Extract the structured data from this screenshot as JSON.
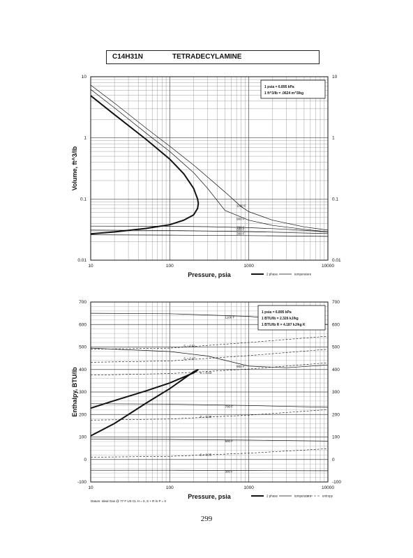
{
  "header": {
    "formula": "C14H31N",
    "name": "TETRADECYLAMINE"
  },
  "page_number": "299",
  "chart_data": [
    {
      "type": "line",
      "xlabel": "Pressure,  psia",
      "ylabel": "Volume, ft^3/lb",
      "xscale": "log",
      "yscale": "log",
      "xlim": [
        10,
        10000
      ],
      "ylim": [
        0.01,
        10
      ],
      "x_ticks": [
        "10",
        "100",
        "1000",
        "10000"
      ],
      "y_ticks": [
        "0.01",
        "0.1",
        "1",
        "10"
      ],
      "y_ticks_right": [
        "0.01",
        "0.1",
        "1",
        "10"
      ],
      "grid": true,
      "conversion_box": [
        "1 psia  =  6.895 kPa",
        "1 ft^3/lb  =  .0624 m^3/kg"
      ],
      "legend": [
        {
          "label": "2 phase",
          "style": "thick"
        },
        {
          "label": "temperature",
          "style": "thin"
        }
      ],
      "series": [
        {
          "style": "2phase",
          "x": [
            10,
            20,
            50,
            100,
            150,
            200,
            225,
            230,
            225,
            200,
            150,
            100,
            50,
            20,
            10
          ],
          "y": [
            4.9,
            2.4,
            0.95,
            0.45,
            0.26,
            0.15,
            0.1,
            0.085,
            0.07,
            0.055,
            0.045,
            0.038,
            0.033,
            0.029,
            0.027
          ]
        },
        {
          "name": "300 F",
          "x": [
            10,
            100,
            1000,
            10000
          ],
          "y": [
            0.026,
            0.0257,
            0.0252,
            0.0245
          ]
        },
        {
          "name": "500 F",
          "x": [
            10,
            100,
            1000,
            10000
          ],
          "y": [
            0.031,
            0.0305,
            0.0293,
            0.0272
          ]
        },
        {
          "name": "700 F",
          "x": [
            10,
            100,
            300,
            1000,
            3000,
            10000
          ],
          "y": [
            0.036,
            0.0358,
            0.0353,
            0.034,
            0.032,
            0.029
          ]
        },
        {
          "name": "900 F",
          "x": [
            10,
            20,
            50,
            100,
            200,
            300,
            500,
            1000,
            2000,
            5000,
            10000
          ],
          "y": [
            6.2,
            3.1,
            1.2,
            0.6,
            0.27,
            0.15,
            0.065,
            0.045,
            0.037,
            0.032,
            0.029
          ]
        },
        {
          "name": "1100 F",
          "x": [
            10,
            20,
            50,
            100,
            200,
            500,
            800,
            1000,
            2000,
            5000,
            10000
          ],
          "y": [
            7.3,
            3.7,
            1.45,
            0.73,
            0.36,
            0.13,
            0.075,
            0.062,
            0.045,
            0.035,
            0.031
          ]
        }
      ],
      "annotations": [
        "1100 F",
        "900 F",
        "700 F",
        "500 F",
        "300 F"
      ]
    },
    {
      "type": "line",
      "xlabel": "Pressure,  psia",
      "ylabel": "Enthalpy, BTU/lb",
      "xscale": "log",
      "xlim": [
        10,
        10000
      ],
      "ylim": [
        -100,
        700
      ],
      "x_ticks": [
        "10",
        "100",
        "1000",
        "10000"
      ],
      "y_ticks": [
        "-100",
        "0",
        "100",
        "200",
        "300",
        "400",
        "500",
        "600",
        "700"
      ],
      "y_ticks_right": [
        "-100",
        "0",
        "100",
        "200",
        "300",
        "400",
        "500",
        "600",
        "700"
      ],
      "grid": true,
      "conversion_box": [
        "1 psia  =  6.895 kPa",
        "1 BTU/lb  =  2.326 kJ/kg",
        "1 BTU/lb R  =  4.187 kJ/kg K"
      ],
      "legend": [
        {
          "label": "2 phase",
          "style": "thick"
        },
        {
          "label": "temperature",
          "style": "thin"
        },
        {
          "label": "entropy",
          "style": "dashed"
        }
      ],
      "datum": "Datum: Ideal Gas @ 77 F US CL  H = 0,  S + R ln P = 0",
      "series": [
        {
          "style": "2phase",
          "x": [
            10,
            20,
            50,
            100,
            200,
            230,
            200,
            100,
            50,
            20,
            10
          ],
          "y": [
            228,
            262,
            305,
            340,
            385,
            400,
            390,
            315,
            250,
            160,
            105
          ]
        },
        {
          "name": "1100 F",
          "x": [
            10,
            100,
            1000,
            3000,
            10000
          ],
          "y": [
            650,
            648,
            636,
            622,
            600
          ]
        },
        {
          "name": "900 F",
          "x": [
            10,
            100,
            300,
            1000,
            3000,
            10000
          ],
          "y": [
            495,
            480,
            460,
            415,
            408,
            420
          ]
        },
        {
          "name": "700 F",
          "x": [
            10,
            100,
            1000,
            10000
          ],
          "y": [
            248,
            246,
            240,
            232
          ]
        },
        {
          "name": "500 F",
          "x": [
            10,
            100,
            1000,
            10000
          ],
          "y": [
            90,
            89,
            86,
            82
          ]
        },
        {
          "name": "300 F",
          "x": [
            10,
            100,
            1000,
            10000
          ],
          "y": [
            -48,
            -48,
            -49,
            -50
          ]
        },
        {
          "style": "entropy",
          "name": "S = 0.51",
          "x": [
            10,
            100,
            1000,
            10000
          ],
          "y": [
            490,
            495,
            520,
            548
          ]
        },
        {
          "style": "entropy",
          "name": "S = 0.47",
          "x": [
            10,
            100,
            1000,
            10000
          ],
          "y": [
            432,
            438,
            462,
            490
          ]
        },
        {
          "style": "entropy",
          "name": "S = 0.43",
          "x": [
            10,
            100,
            1000,
            10000
          ],
          "y": [
            375,
            382,
            402,
            430
          ]
        },
        {
          "style": "entropy",
          "name": "S = 0.29",
          "x": [
            10,
            100,
            1000,
            10000
          ],
          "y": [
            175,
            180,
            197,
            222
          ]
        },
        {
          "style": "entropy",
          "name": "S = 0.05",
          "x": [
            10,
            100,
            1000,
            10000
          ],
          "y": [
            10,
            14,
            28,
            48
          ]
        }
      ],
      "annotations": [
        "1100 F",
        "900 F",
        "700 F",
        "500 F",
        "300 F",
        "S = 0.51",
        "S = 0.47",
        "S = 0.43",
        "S = 0.29",
        "S = 0.05"
      ]
    }
  ]
}
